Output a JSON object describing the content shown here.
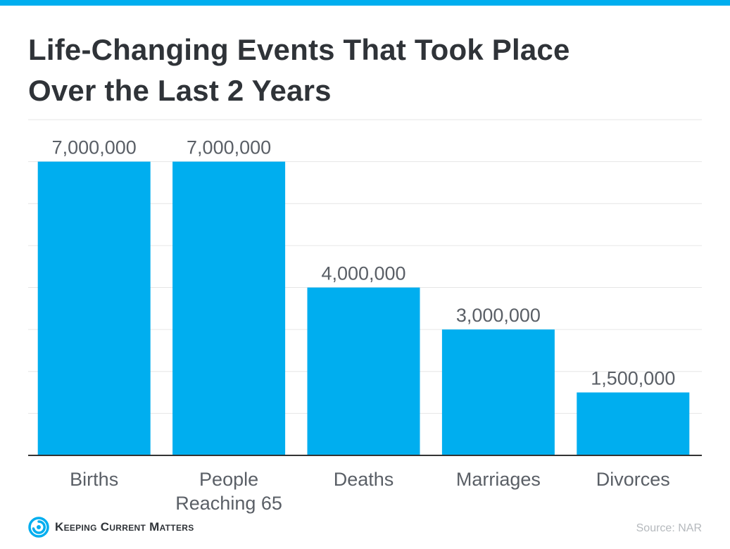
{
  "colors": {
    "accent": "#00aeef",
    "title": "#2f3338",
    "label": "#5a5f66",
    "grid": "#e6e6e6",
    "axis": "#333333",
    "source": "#b5b9bd"
  },
  "title_lines": [
    "Life-Changing Events That Took Place",
    "Over the Last 2 Years"
  ],
  "chart_data": {
    "type": "bar",
    "title": "Life-Changing Events That Took Place Over the Last 2 Years",
    "categories": [
      [
        "Births"
      ],
      [
        "People",
        "Reaching 65"
      ],
      [
        "Deaths"
      ],
      [
        "Marriages"
      ],
      [
        "Divorces"
      ]
    ],
    "values": [
      7000000,
      7000000,
      4000000,
      3000000,
      1500000
    ],
    "value_labels": [
      "7,000,000",
      "7,000,000",
      "4,000,000",
      "3,000,000",
      "1,500,000"
    ],
    "ylim": [
      0,
      8000000
    ],
    "grid": true,
    "legend": "none",
    "bar_color": "#00aeef"
  },
  "footer": {
    "brand_name": "Keeping Current Matters",
    "logo_icon": "kcm-swirl-icon",
    "source": "Source: NAR"
  }
}
